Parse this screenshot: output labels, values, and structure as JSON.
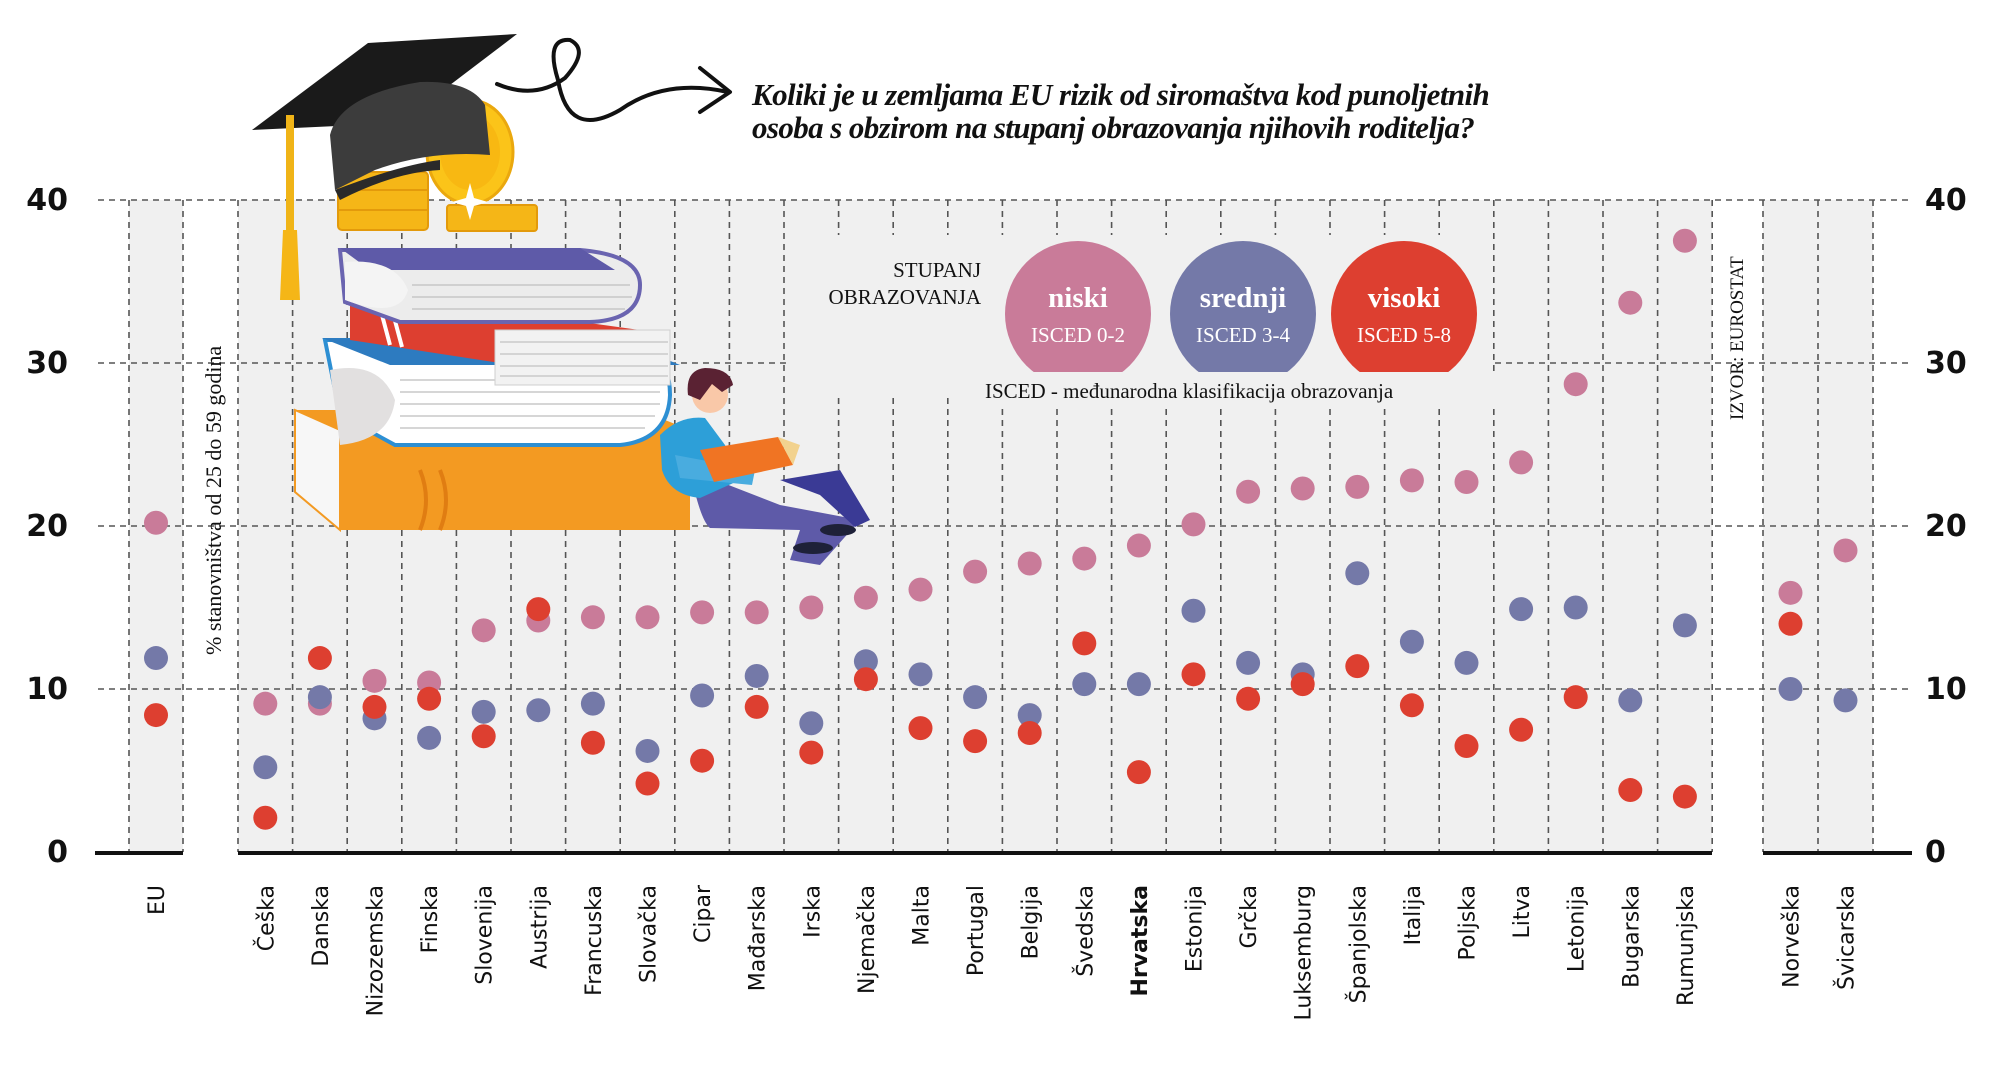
{
  "title": {
    "line1": "Koliki je u zemljama EU rizik od siromaštva kod punoljetnih",
    "line2": "osoba s obzirom na stupanj obrazovanja njihovih roditelja?"
  },
  "legend": {
    "heading_line1": "STUPANJ",
    "heading_line2": "OBRAZOVANJA",
    "items": [
      {
        "key": "niski",
        "label": "niski",
        "sublabel": "ISCED 0-2",
        "color": "#c97b99"
      },
      {
        "key": "srednji",
        "label": "srednji",
        "sublabel": "ISCED 3-4",
        "color": "#7479a8"
      },
      {
        "key": "visoki",
        "label": "visoki",
        "sublabel": "ISCED 5-8",
        "color": "#dd3f30"
      }
    ],
    "note": "ISCED - međunarodna klasifikacija obrazovanja"
  },
  "source": "IZVOR: EUROSTAT",
  "chart_data": {
    "type": "scatter",
    "title": "Koliki je u zemljama EU rizik od siromaštva kod punoljetnih osoba s obzirom na stupanj obrazovanja njihovih roditelja?",
    "xlabel": "",
    "ylabel": "% stanovništva  od 25 do 59 godina",
    "ylim": [
      0,
      40
    ],
    "yticks": [
      0,
      10,
      20,
      30,
      40
    ],
    "grid": true,
    "legend_position": "top",
    "highlight_category": "Hrvatska",
    "groups": [
      {
        "name": "eu",
        "categories": [
          "EU"
        ]
      },
      {
        "name": "members",
        "categories": [
          "Češka",
          "Danska",
          "Nizozemska",
          "Finska",
          "Slovenija",
          "Austrija",
          "Francuska",
          "Slovačka",
          "Cipar",
          "Mađarska",
          "Irska",
          "Njemačka",
          "Malta",
          "Portugal",
          "Belgija",
          "Švedska",
          "Hrvatska",
          "Estonija",
          "Grčka",
          "Luksemburg",
          "Španjolska",
          "Italija",
          "Poljska",
          "Litva",
          "Letonija",
          "Bugarska",
          "Rumunjska"
        ]
      },
      {
        "name": "non_eu",
        "categories": [
          "Norveška",
          "Švicarska"
        ]
      }
    ],
    "categories": [
      "EU",
      "Češka",
      "Danska",
      "Nizozemska",
      "Finska",
      "Slovenija",
      "Austrija",
      "Francuska",
      "Slovačka",
      "Cipar",
      "Mađarska",
      "Irska",
      "Njemačka",
      "Malta",
      "Portugal",
      "Belgija",
      "Švedska",
      "Hrvatska",
      "Estonija",
      "Grčka",
      "Luksemburg",
      "Španjolska",
      "Italija",
      "Poljska",
      "Litva",
      "Letonija",
      "Bugarska",
      "Rumunjska",
      "Norveška",
      "Švicarska"
    ],
    "series": [
      {
        "name": "niski",
        "label": "ISCED 0-2",
        "color": "#c97b99",
        "values": [
          20.2,
          9.1,
          9.1,
          10.5,
          10.4,
          13.6,
          14.2,
          14.4,
          14.4,
          14.7,
          14.7,
          15.0,
          15.6,
          16.1,
          17.2,
          17.7,
          18.0,
          18.8,
          20.1,
          22.1,
          22.3,
          22.4,
          22.8,
          22.7,
          23.9,
          28.7,
          33.7,
          37.5,
          15.9,
          18.5
        ]
      },
      {
        "name": "srednji",
        "label": "ISCED 3-4",
        "color": "#7479a8",
        "values": [
          11.9,
          5.2,
          9.5,
          8.2,
          7.0,
          8.6,
          8.7,
          9.1,
          6.2,
          9.6,
          10.8,
          7.9,
          11.7,
          10.9,
          9.5,
          8.4,
          10.3,
          10.3,
          14.8,
          11.6,
          10.9,
          17.1,
          12.9,
          11.6,
          14.9,
          15.0,
          9.3,
          13.9,
          10.0,
          9.3
        ]
      },
      {
        "name": "visoki",
        "label": "ISCED 5-8",
        "color": "#dd3f30",
        "values": [
          8.4,
          2.1,
          11.9,
          8.9,
          9.4,
          7.1,
          14.9,
          6.7,
          4.2,
          5.6,
          8.9,
          6.1,
          10.6,
          7.6,
          6.8,
          7.3,
          12.8,
          4.9,
          10.9,
          9.4,
          10.3,
          11.4,
          9.0,
          6.5,
          7.5,
          9.5,
          3.8,
          3.4,
          14.0,
          null
        ]
      }
    ]
  }
}
